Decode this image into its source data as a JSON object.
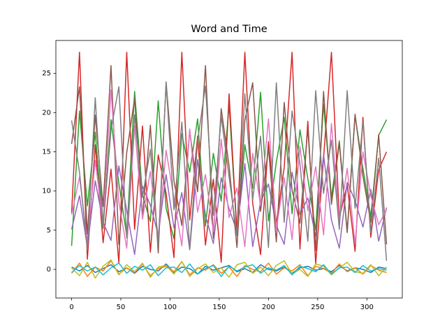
{
  "chart_data": {
    "type": "line",
    "title": "Word and Time",
    "x": [
      0,
      8,
      16,
      24,
      32,
      40,
      48,
      56,
      64,
      72,
      80,
      88,
      96,
      104,
      112,
      120,
      128,
      136,
      144,
      152,
      160,
      168,
      176,
      184,
      192,
      200,
      208,
      216,
      224,
      232,
      240,
      248,
      256,
      264,
      272,
      280,
      288,
      296,
      304,
      312,
      320
    ],
    "series": [
      {
        "color": "#1f77b4",
        "values": [
          0.3,
          -0.2,
          0.5,
          -0.4,
          0.1,
          0.6,
          -0.3,
          0.2,
          -0.5,
          0.4,
          0.0,
          -0.2,
          0.7,
          -0.4,
          0.3,
          0.1,
          -0.6,
          0.4,
          -0.1,
          0.2,
          0.5,
          -0.3,
          0.1,
          -0.4,
          0.6,
          0.0,
          -0.2,
          0.3,
          -0.5,
          0.2,
          0.4,
          -0.1,
          0.1,
          -0.3,
          0.5,
          -0.2,
          0.2,
          0.0,
          -0.4,
          0.3,
          0.1
        ]
      },
      {
        "color": "#ff7f0e",
        "values": [
          -0.5,
          0.8,
          -0.9,
          0.3,
          -0.2,
          1.1,
          -0.6,
          0.2,
          -0.4,
          0.7,
          -0.8,
          0.1,
          0.4,
          -0.3,
          1.0,
          -0.7,
          0.2,
          -0.1,
          0.6,
          -0.5,
          0.3,
          -0.9,
          0.5,
          0.0,
          -0.3,
          0.8,
          -0.6,
          0.2,
          -0.2,
          0.6,
          -0.8,
          0.4,
          0.1,
          -0.5,
          0.7,
          -0.3,
          0.2,
          -0.6,
          0.5,
          -0.1,
          -0.4
        ]
      },
      {
        "color": "#2ca02c",
        "values": [
          3.0,
          20.2,
          8.1,
          17.5,
          5.2,
          19.1,
          11.0,
          4.3,
          22.7,
          9.5,
          6.1,
          21.5,
          7.8,
          3.9,
          17.3,
          12.4,
          19.2,
          5.5,
          14.8,
          8.7,
          21.0,
          4.6,
          15.9,
          10.3,
          22.6,
          6.2,
          13.7,
          19.4,
          7.1,
          17.8,
          11.6,
          5.0,
          21.1,
          9.2,
          16.4,
          4.8,
          19.6,
          12.9,
          6.7,
          17.1,
          19.1
        ]
      },
      {
        "color": "#d62728",
        "values": [
          7.2,
          27.7,
          1.3,
          15.9,
          3.4,
          12.8,
          0.8,
          27.7,
          5.1,
          18.3,
          2.2,
          14.6,
          9.7,
          1.5,
          27.7,
          6.3,
          17.0,
          3.1,
          11.5,
          0.9,
          22.4,
          4.7,
          27.7,
          8.4,
          1.9,
          16.3,
          5.8,
          13.0,
          27.7,
          2.6,
          18.9,
          0.7,
          14.2,
          27.7,
          6.5,
          10.8,
          2.3,
          19.4,
          4.1,
          12.7,
          15.0
        ]
      },
      {
        "color": "#9467bd",
        "values": [
          5.1,
          9.4,
          2.8,
          11.3,
          6.0,
          3.7,
          13.2,
          7.5,
          1.9,
          10.6,
          8.2,
          4.4,
          12.1,
          5.3,
          9.8,
          2.5,
          14.0,
          6.9,
          3.3,
          11.7,
          7.7,
          4.9,
          13.5,
          2.9,
          8.6,
          10.9,
          5.6,
          3.2,
          12.4,
          7.0,
          9.1,
          4.2,
          14.6,
          6.3,
          2.7,
          11.1,
          8.8,
          5.4,
          10.2,
          3.6,
          7.9
        ]
      },
      {
        "color": "#8c564b",
        "values": [
          16.0,
          23.3,
          4.5,
          19.7,
          8.0,
          26.0,
          3.2,
          14.9,
          21.8,
          6.7,
          18.4,
          2.1,
          23.9,
          11.3,
          5.6,
          17.7,
          9.9,
          26.0,
          4.0,
          20.5,
          13.2,
          2.8,
          19.0,
          23.8,
          7.4,
          15.5,
          3.5,
          21.3,
          10.1,
          5.9,
          18.0,
          2.4,
          22.7,
          8.3,
          16.1,
          4.7,
          19.8,
          11.9,
          6.0,
          17.2,
          3.2
        ]
      },
      {
        "color": "#e377c2",
        "values": [
          7.0,
          11.8,
          3.5,
          13.9,
          5.9,
          22.9,
          8.6,
          2.7,
          18.3,
          6.4,
          12.5,
          4.1,
          15.2,
          9.0,
          3.0,
          17.9,
          7.3,
          12.1,
          4.8,
          16.6,
          6.6,
          10.4,
          2.9,
          14.8,
          8.1,
          19.2,
          5.2,
          11.7,
          3.8,
          15.7,
          7.5,
          13.1,
          4.4,
          18.6,
          6.1,
          12.9,
          3.3,
          15.0,
          9.4,
          5.7,
          7.6
        ]
      },
      {
        "color": "#7f7f7f",
        "values": [
          19.0,
          12.4,
          2.5,
          21.9,
          5.5,
          17.8,
          23.3,
          4.0,
          19.7,
          9.2,
          15.3,
          3.1,
          23.8,
          7.6,
          18.8,
          2.6,
          16.4,
          23.4,
          6.9,
          19.5,
          11.8,
          4.3,
          22.4,
          8.9,
          17.0,
          2.8,
          23.8,
          6.0,
          20.2,
          13.4,
          3.6,
          22.8,
          9.7,
          16.5,
          5.1,
          22.8,
          7.8,
          18.9,
          4.7,
          14.2,
          1.1
        ]
      },
      {
        "color": "#bcbd22",
        "values": [
          0.2,
          -0.8,
          0.9,
          -1.1,
          0.4,
          1.2,
          -0.7,
          0.6,
          -0.3,
          0.8,
          -1.0,
          0.3,
          0.5,
          -0.6,
          1.0,
          -0.9,
          0.1,
          0.7,
          -0.4,
          0.2,
          -1.0,
          0.6,
          0.9,
          -0.5,
          0.3,
          -0.8,
          0.5,
          1.1,
          -0.6,
          0.0,
          -0.9,
          0.7,
          0.4,
          -0.7,
          0.2,
          0.9,
          -0.3,
          -0.5,
          0.6,
          -0.8,
          0.3
        ]
      },
      {
        "color": "#17becf",
        "values": [
          -0.4,
          0.5,
          -0.2,
          0.3,
          -0.7,
          0.2,
          0.8,
          -0.5,
          0.4,
          -0.1,
          0.6,
          -0.8,
          0.2,
          0.3,
          -0.4,
          0.7,
          -0.6,
          0.1,
          0.5,
          -0.9,
          0.4,
          -0.2,
          0.3,
          0.6,
          -0.5,
          0.2,
          -0.1,
          0.5,
          -0.7,
          0.4,
          0.1,
          -0.3,
          0.6,
          -0.6,
          0.2,
          0.3,
          -0.4,
          0.5,
          -0.2,
          0.1,
          -0.1
        ]
      }
    ],
    "xlim": [
      -16,
      336
    ],
    "ylim": [
      -3.65,
      29.2
    ],
    "xticks": [
      0,
      50,
      100,
      150,
      200,
      250,
      300
    ],
    "yticks": [
      0,
      5,
      10,
      15,
      20,
      25
    ]
  }
}
